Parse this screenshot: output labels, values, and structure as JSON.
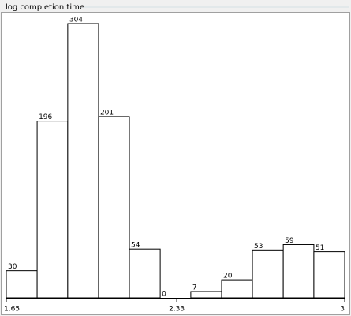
{
  "chart_data": {
    "type": "histogram",
    "title": "log completion time",
    "bins": [
      1.65,
      1.773,
      1.895,
      2.018,
      2.141,
      2.264,
      2.386,
      2.509,
      2.632,
      2.755,
      2.877,
      3
    ],
    "values": [
      30,
      196,
      304,
      201,
      54,
      0,
      7,
      20,
      53,
      59,
      51
    ],
    "color": "#ffffff",
    "xlim": [
      1.65,
      3
    ],
    "xticks": [
      1.65,
      2.33,
      3
    ]
  }
}
